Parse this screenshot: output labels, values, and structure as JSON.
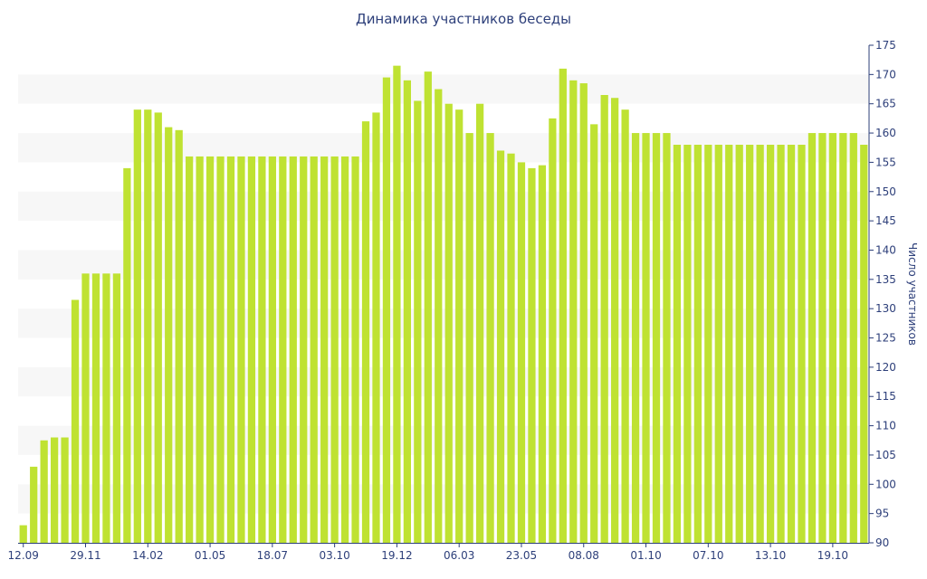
{
  "chart_data": {
    "type": "bar",
    "title": "Динамика участников беседы",
    "ylabel": "Число участников",
    "xlabel": "",
    "ylim": [
      90,
      175
    ],
    "yticks": [
      90,
      95,
      100,
      105,
      110,
      115,
      120,
      125,
      130,
      135,
      140,
      145,
      150,
      155,
      160,
      165,
      170,
      175
    ],
    "y_axis_side": "right",
    "grid": "alternating horizontal bands",
    "x_tick_labels": [
      {
        "index": 0,
        "label": "12.09"
      },
      {
        "index": 6,
        "label": "29.11"
      },
      {
        "index": 12,
        "label": "14.02"
      },
      {
        "index": 18,
        "label": "01.05"
      },
      {
        "index": 24,
        "label": "18.07"
      },
      {
        "index": 30,
        "label": "03.10"
      },
      {
        "index": 36,
        "label": "19.12"
      },
      {
        "index": 42,
        "label": "06.03"
      },
      {
        "index": 48,
        "label": "23.05"
      },
      {
        "index": 54,
        "label": "08.08"
      },
      {
        "index": 60,
        "label": "01.10"
      },
      {
        "index": 66,
        "label": "07.10"
      },
      {
        "index": 72,
        "label": "13.10"
      },
      {
        "index": 78,
        "label": "19.10"
      }
    ],
    "values": [
      93,
      103,
      107.5,
      108,
      108,
      131.5,
      136,
      136,
      136,
      136,
      154,
      164,
      164,
      163.5,
      161,
      160.5,
      156,
      156,
      156,
      156,
      156,
      156,
      156,
      156,
      156,
      156,
      156,
      156,
      156,
      156,
      156,
      156,
      156,
      162,
      163.5,
      169.5,
      171.5,
      169,
      165.5,
      170.5,
      167.5,
      165,
      164,
      160,
      165,
      160,
      157,
      156.5,
      155,
      154,
      154.5,
      162.5,
      171,
      169,
      168.5,
      161.5,
      166.5,
      166,
      164,
      160,
      160,
      160,
      160,
      158,
      158,
      158,
      158,
      158,
      158,
      158,
      158,
      158,
      158,
      158,
      158,
      158,
      160,
      160,
      160,
      160,
      160,
      158
    ],
    "colors": {
      "bar": "#bfe232",
      "band": "#f7f7f7",
      "text": "#2d3f7a",
      "axis": "#2d3f7a"
    }
  }
}
